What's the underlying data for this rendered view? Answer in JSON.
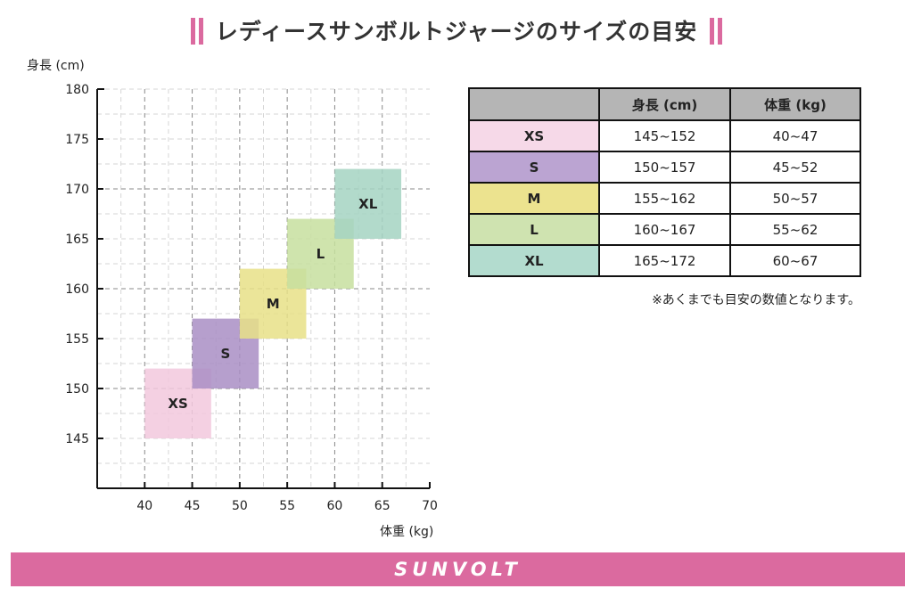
{
  "title": "レディースサンボルトジャージのサイズの目安",
  "accent_color": "#db6a9f",
  "chart_data": {
    "type": "scatter",
    "xlabel": "体重 (kg)",
    "ylabel": "身長 (cm)",
    "xlim": [
      35,
      70
    ],
    "ylim": [
      140,
      180
    ],
    "x_ticks": [
      40,
      45,
      50,
      55,
      60,
      65,
      70
    ],
    "y_ticks": [
      145,
      150,
      155,
      160,
      165,
      170,
      175,
      180
    ],
    "grid": true,
    "regions": [
      {
        "name": "XS",
        "weight": [
          40,
          47
        ],
        "height": [
          145,
          152
        ],
        "color": "#f2c8dd"
      },
      {
        "name": "S",
        "weight": [
          45,
          52
        ],
        "height": [
          150,
          157
        ],
        "color": "#a98ec4"
      },
      {
        "name": "M",
        "weight": [
          50,
          57
        ],
        "height": [
          155,
          162
        ],
        "color": "#e8e087"
      },
      {
        "name": "L",
        "weight": [
          55,
          62
        ],
        "height": [
          160,
          167
        ],
        "color": "#c7df9f"
      },
      {
        "name": "XL",
        "weight": [
          60,
          67
        ],
        "height": [
          165,
          172
        ],
        "color": "#a4d3c2"
      }
    ]
  },
  "table": {
    "headers": [
      "",
      "身長 (cm)",
      "体重 (kg)"
    ],
    "rows": [
      {
        "size": "XS",
        "height": "145~152",
        "weight": "40~47",
        "color": "#f6d9e8"
      },
      {
        "size": "S",
        "height": "150~157",
        "weight": "45~52",
        "color": "#bba4d2"
      },
      {
        "size": "M",
        "height": "155~162",
        "weight": "50~57",
        "color": "#ece38f"
      },
      {
        "size": "L",
        "height": "160~167",
        "weight": "55~62",
        "color": "#cfe3b0"
      },
      {
        "size": "XL",
        "height": "165~172",
        "weight": "60~67",
        "color": "#b3dccf"
      }
    ]
  },
  "note": "※あくまでも目安の数値となります。",
  "footer": {
    "brand": "SUNVOLT"
  }
}
